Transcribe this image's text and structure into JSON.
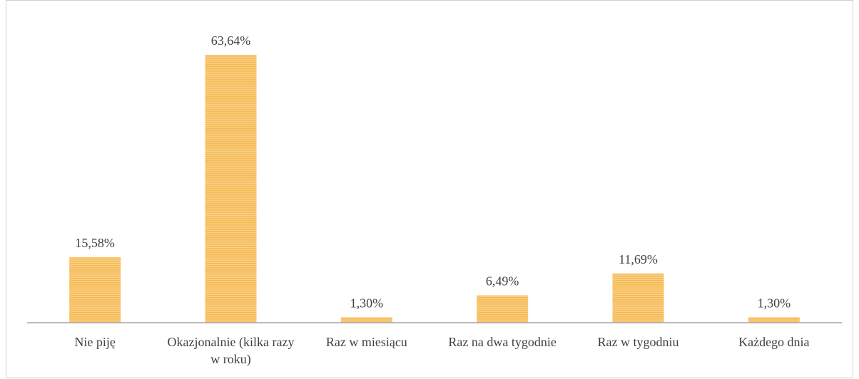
{
  "chart_data": {
    "type": "bar",
    "categories": [
      "Nie piję",
      "Okazjonalnie (kilka razy w roku)",
      "Raz w miesiącu",
      "Raz na dwa tygodnie",
      "Raz w tygodniu",
      "Każdego dnia"
    ],
    "values": [
      15.58,
      63.64,
      1.3,
      6.49,
      11.69,
      1.3
    ],
    "value_labels": [
      "15,58%",
      "63,64%",
      "1,30%",
      "6,49%",
      "11,69%",
      "1,30%"
    ],
    "color": "#f7c46c"
  }
}
